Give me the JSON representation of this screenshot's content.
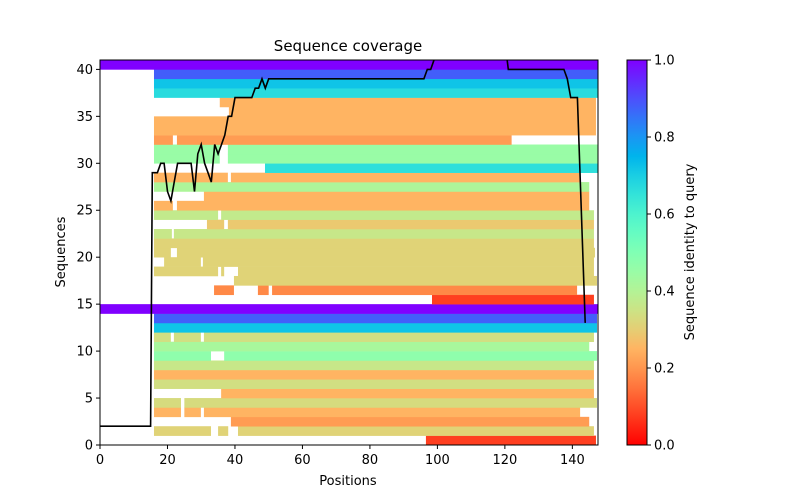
{
  "chart_data": {
    "type": "heatmap",
    "title": "Sequence coverage",
    "xlabel": "Positions",
    "ylabel": "Sequences",
    "xlim": [
      0,
      147.6
    ],
    "ylim": [
      0,
      41
    ],
    "xticks": [
      0,
      20,
      40,
      60,
      80,
      100,
      120,
      140
    ],
    "yticks": [
      0,
      5,
      10,
      15,
      20,
      25,
      30,
      35,
      40
    ],
    "grid": false,
    "colorbar": {
      "label": "Sequence identity to query",
      "colormap": "rainbow",
      "range": [
        0,
        1
      ],
      "ticks": [
        "0.0",
        "0.2",
        "0.4",
        "0.6",
        "0.8",
        "1.0"
      ],
      "placement": "right"
    },
    "rows": [
      {
        "seq": 0,
        "segments": [
          [
            96.6,
            147.0,
            0.08
          ]
        ]
      },
      {
        "seq": 1,
        "segments": [
          [
            16,
            32.9,
            0.31
          ],
          [
            35.0,
            38.0,
            0.31
          ],
          [
            40.9,
            146.4,
            0.31
          ]
        ]
      },
      {
        "seq": 2,
        "segments": [
          [
            38.8,
            145.0,
            0.21
          ]
        ]
      },
      {
        "seq": 3,
        "segments": [
          [
            16,
            24.0,
            0.25
          ],
          [
            25.0,
            29.9,
            0.25
          ],
          [
            30.8,
            142.3,
            0.25
          ]
        ]
      },
      {
        "seq": 4,
        "segments": [
          [
            16,
            24.0,
            0.33
          ],
          [
            25.0,
            147.3,
            0.33
          ]
        ]
      },
      {
        "seq": 5,
        "segments": [
          [
            35.9,
            146.4,
            0.25
          ]
        ]
      },
      {
        "seq": 6,
        "segments": [
          [
            16,
            146.4,
            0.34
          ]
        ]
      },
      {
        "seq": 7,
        "segments": [
          [
            16,
            146.4,
            0.25
          ]
        ]
      },
      {
        "seq": 8,
        "segments": [
          [
            16,
            146.4,
            0.36
          ]
        ]
      },
      {
        "seq": 9,
        "segments": [
          [
            16,
            32.9,
            0.47
          ],
          [
            36.8,
            147.3,
            0.47
          ]
        ]
      },
      {
        "seq": 10,
        "segments": [
          [
            16,
            145.0,
            0.42
          ]
        ]
      },
      {
        "seq": 11,
        "segments": [
          [
            16,
            21.0,
            0.34
          ],
          [
            21.9,
            29.9,
            0.34
          ],
          [
            30.8,
            146.4,
            0.34
          ]
        ]
      },
      {
        "seq": 12,
        "segments": [
          [
            16,
            147.3,
            0.72
          ]
        ]
      },
      {
        "seq": 13,
        "segments": [
          [
            16,
            147.3,
            0.88
          ]
        ]
      },
      {
        "seq": 14,
        "segments": [
          [
            0,
            147.6,
            1.0
          ]
        ]
      },
      {
        "seq": 15,
        "segments": [
          [
            98.4,
            146.4,
            0.08
          ]
        ]
      },
      {
        "seq": 16,
        "segments": [
          [
            33.8,
            39.7,
            0.18
          ],
          [
            46.8,
            50.0,
            0.18
          ],
          [
            51.0,
            141.4,
            0.18
          ]
        ]
      },
      {
        "seq": 17,
        "segments": [
          [
            39.7,
            147.3,
            0.31
          ]
        ]
      },
      {
        "seq": 18,
        "segments": [
          [
            16,
            35.0,
            0.31
          ],
          [
            35.9,
            36.8,
            0.31
          ],
          [
            40.9,
            146.4,
            0.31
          ]
        ]
      },
      {
        "seq": 19,
        "segments": [
          [
            19.0,
            29.9,
            0.31
          ],
          [
            30.5,
            146.4,
            0.31
          ]
        ]
      },
      {
        "seq": 20,
        "segments": [
          [
            16,
            21.0,
            0.31
          ],
          [
            22.8,
            146.7,
            0.31
          ]
        ]
      },
      {
        "seq": 21,
        "segments": [
          [
            16,
            146.4,
            0.31
          ]
        ]
      },
      {
        "seq": 22,
        "segments": [
          [
            16,
            21.3,
            0.36
          ],
          [
            21.9,
            146.4,
            0.36
          ]
        ]
      },
      {
        "seq": 23,
        "segments": [
          [
            31.7,
            36.8,
            0.29
          ],
          [
            37.9,
            146.4,
            0.29
          ]
        ]
      },
      {
        "seq": 24,
        "segments": [
          [
            16,
            35.0,
            0.37
          ],
          [
            35.9,
            146.4,
            0.37
          ]
        ]
      },
      {
        "seq": 25,
        "segments": [
          [
            16,
            21.6,
            0.25
          ],
          [
            22.8,
            145.0,
            0.25
          ]
        ]
      },
      {
        "seq": 26,
        "segments": [
          [
            30.8,
            145.0,
            0.25
          ]
        ]
      },
      {
        "seq": 27,
        "segments": [
          [
            16,
            145.0,
            0.41
          ]
        ]
      },
      {
        "seq": 28,
        "segments": [
          [
            16,
            37.9,
            0.25
          ],
          [
            38.8,
            142.3,
            0.25
          ]
        ]
      },
      {
        "seq": 29,
        "segments": [
          [
            48.9,
            147.6,
            0.66
          ]
        ]
      },
      {
        "seq": 30,
        "segments": [
          [
            16,
            35.5,
            0.45
          ],
          [
            37.9,
            147.6,
            0.45
          ]
        ]
      },
      {
        "seq": 31,
        "segments": [
          [
            16,
            35.5,
            0.45
          ],
          [
            37.9,
            147.6,
            0.45
          ]
        ]
      },
      {
        "seq": 32,
        "segments": [
          [
            16,
            21.6,
            0.21
          ],
          [
            22.8,
            122.0,
            0.21
          ]
        ]
      },
      {
        "seq": 33,
        "segments": [
          [
            16,
            147.0,
            0.25
          ]
        ]
      },
      {
        "seq": 34,
        "segments": [
          [
            16,
            147.0,
            0.25
          ]
        ]
      },
      {
        "seq": 35,
        "segments": [
          [
            38.2,
            147.0,
            0.25
          ]
        ]
      },
      {
        "seq": 36,
        "segments": [
          [
            35.5,
            147.0,
            0.25
          ]
        ]
      },
      {
        "seq": 37,
        "segments": [
          [
            16,
            147.6,
            0.67
          ]
        ]
      },
      {
        "seq": 38,
        "segments": [
          [
            16,
            147.6,
            0.72
          ]
        ]
      },
      {
        "seq": 39,
        "segments": [
          [
            16,
            147.6,
            0.88
          ]
        ]
      },
      {
        "seq": 40,
        "segments": [
          [
            0,
            147.6,
            1.0
          ]
        ]
      }
    ],
    "coverage_line": {
      "color": "#000000",
      "x": [
        0,
        15,
        15.5,
        17,
        18,
        19,
        20,
        21,
        22,
        23,
        24,
        25,
        26,
        27,
        28,
        29,
        30,
        31,
        32,
        33,
        34,
        35,
        36,
        37,
        38,
        39,
        40,
        44,
        45,
        46,
        47,
        48,
        49,
        50,
        96,
        97,
        98,
        99,
        100,
        120,
        121,
        137.5,
        138.5,
        139.5,
        141.5,
        143.8
      ],
      "y": [
        2,
        2,
        29,
        29,
        30,
        30,
        27,
        26,
        28,
        30,
        30,
        30,
        30,
        30,
        27,
        31,
        32,
        30,
        29,
        28,
        32,
        31,
        32,
        33,
        35,
        35,
        37,
        37,
        37,
        38,
        38,
        39,
        38,
        39,
        39,
        40,
        40,
        41,
        43,
        43,
        40,
        40,
        39,
        37,
        37,
        13
      ]
    }
  }
}
